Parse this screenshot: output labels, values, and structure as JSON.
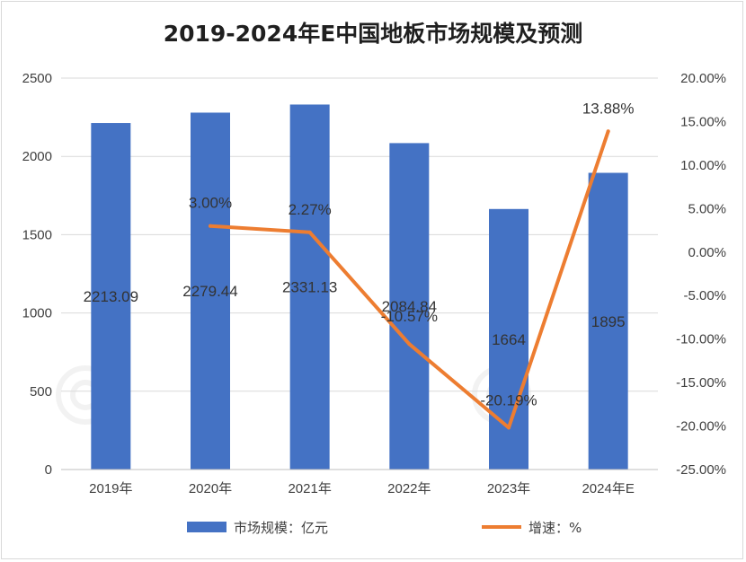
{
  "chart_data": {
    "type": "bar",
    "title": "2019-2024年E中国地板市场规模及预测",
    "categories": [
      "2019年",
      "2020年",
      "2021年",
      "2022年",
      "2023年",
      "2024年E"
    ],
    "series": [
      {
        "name": "市场规模：亿元",
        "type": "bar",
        "axis": "left",
        "color": "#4472c4",
        "values": [
          2213.09,
          2279.44,
          2331.13,
          2084.84,
          1664,
          1895
        ],
        "labels": [
          "2213.09",
          "2279.44",
          "2331.13",
          "2084.84",
          "1664",
          "1895"
        ]
      },
      {
        "name": "增速：%",
        "type": "line",
        "axis": "right",
        "color": "#ed7d31",
        "x": [
          "2020年",
          "2021年",
          "2022年",
          "2023年",
          "2024年E"
        ],
        "values": [
          3.0,
          2.27,
          -10.57,
          -20.19,
          13.88
        ],
        "labels": [
          "3.00%",
          "2.27%",
          "-10.57%",
          "-20.19%",
          "13.88%"
        ]
      }
    ],
    "y_left": {
      "ylim": [
        0,
        2500
      ],
      "ticks": [
        0,
        500,
        1000,
        1500,
        2000,
        2500
      ],
      "tick_labels": [
        "0",
        "500",
        "1000",
        "1500",
        "2000",
        "2500"
      ]
    },
    "y_right": {
      "ylim": [
        -25,
        20
      ],
      "ticks": [
        -25,
        -20,
        -15,
        -10,
        -5,
        0,
        5,
        10,
        15,
        20
      ],
      "tick_labels": [
        "-25.00%",
        "-20.00%",
        "-15.00%",
        "-10.00%",
        "-5.00%",
        "0.00%",
        "5.00%",
        "10.00%",
        "15.00%",
        "20.00%"
      ]
    },
    "grid": true,
    "legend": "bottom"
  }
}
